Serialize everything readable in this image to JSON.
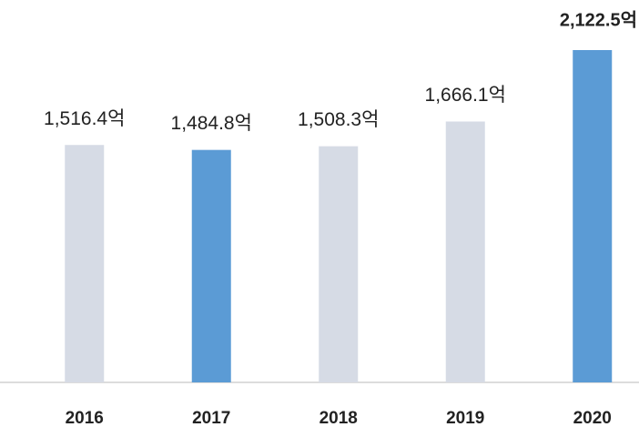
{
  "chart_data": {
    "type": "bar",
    "categories": [
      "2016",
      "2017",
      "2018",
      "2019",
      "2020"
    ],
    "values": [
      1516.4,
      1484.8,
      1508.3,
      1666.1,
      2122.5
    ],
    "value_labels": [
      "1,516.4억",
      "1,484.8억",
      "1,508.3억",
      "1,666.1억",
      "2,122.5억"
    ],
    "colors": [
      "#d6dbe5",
      "#5b9bd5",
      "#d6dbe5",
      "#d6dbe5",
      "#5b9bd5"
    ],
    "bold_labels": [
      false,
      false,
      false,
      false,
      true
    ]
  }
}
